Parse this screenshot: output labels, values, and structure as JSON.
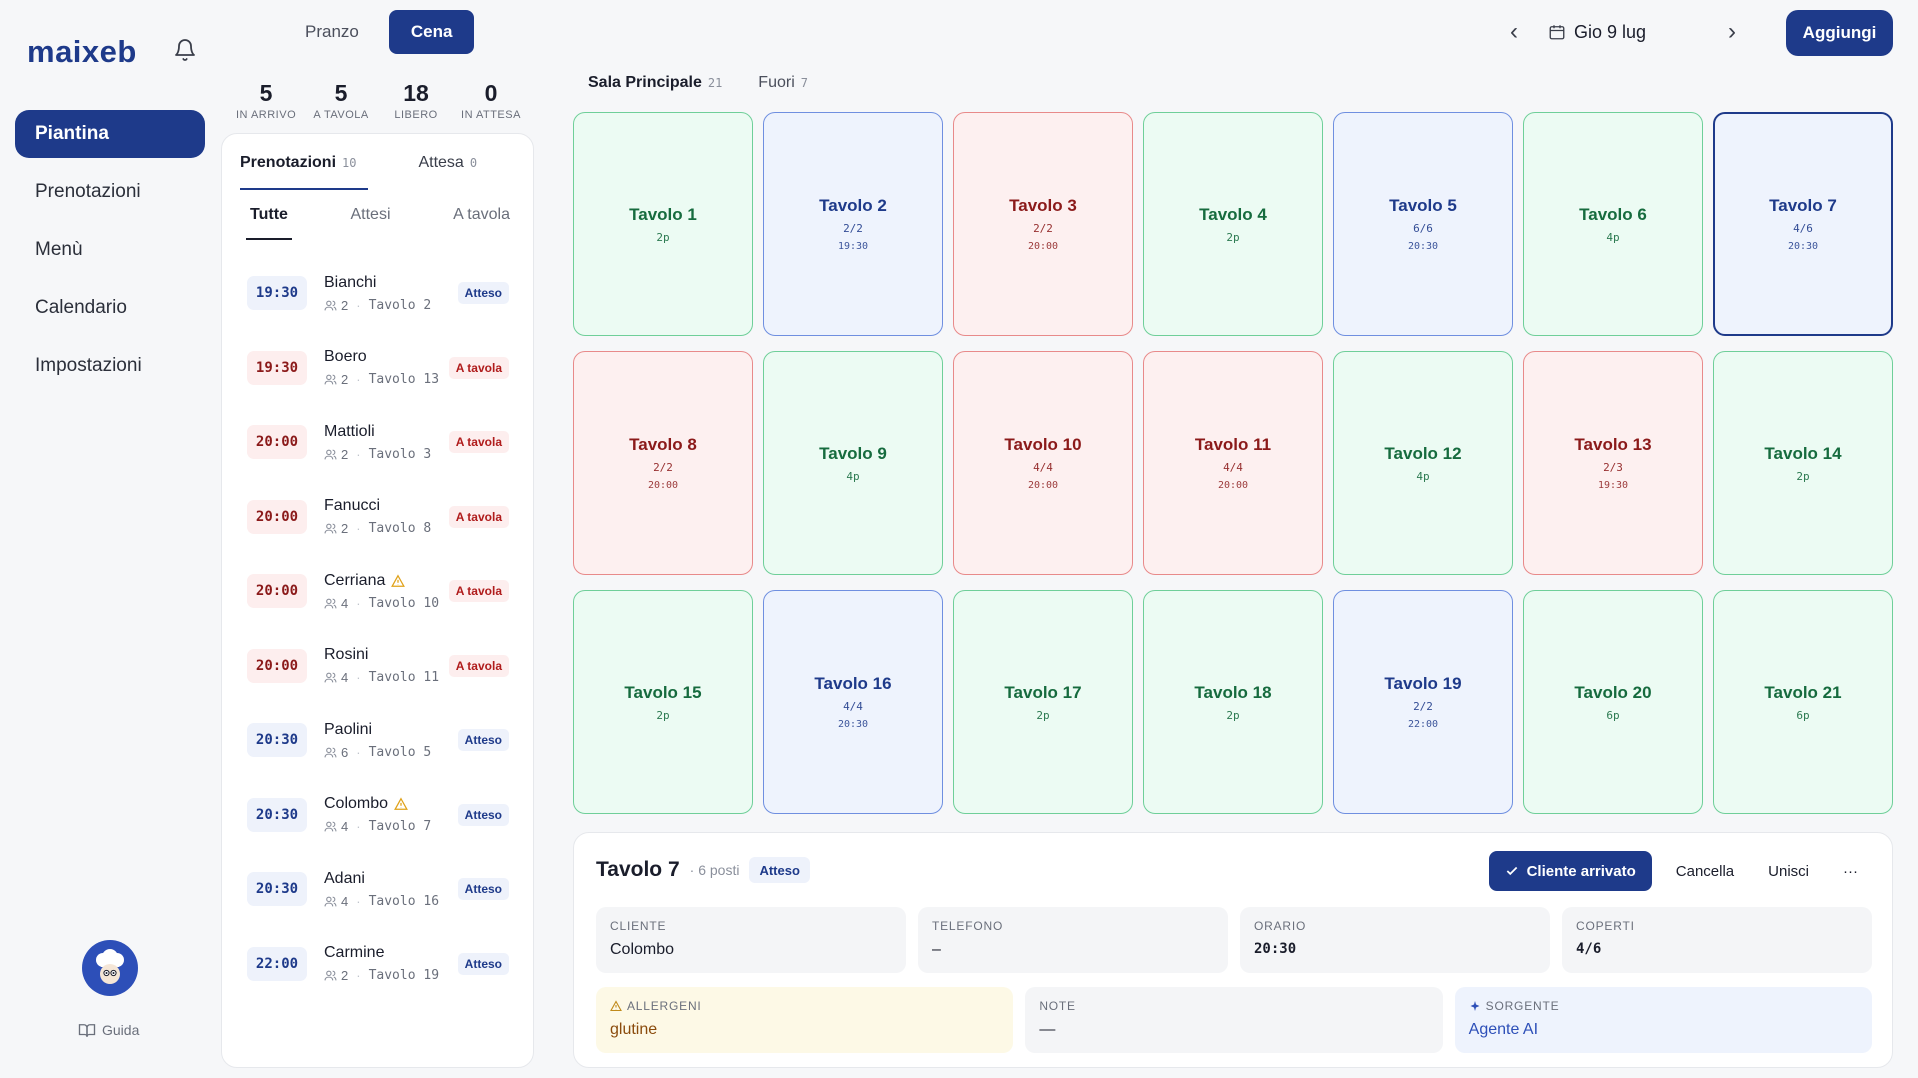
{
  "app": {
    "logo": "maixeb"
  },
  "sidebar": {
    "items": [
      {
        "label": "Piantina",
        "active": true
      },
      {
        "label": "Prenotazioni",
        "active": false
      },
      {
        "label": "Menù",
        "active": false
      },
      {
        "label": "Calendario",
        "active": false
      },
      {
        "label": "Impostazioni",
        "active": false
      }
    ],
    "guide_label": "Guida"
  },
  "meal": {
    "lunch": "Pranzo",
    "dinner": "Cena",
    "selected": "Cena"
  },
  "stats": [
    {
      "value": "5",
      "label": "IN ARRIVO"
    },
    {
      "value": "5",
      "label": "A TAVOLA"
    },
    {
      "value": "18",
      "label": "LIBERO"
    },
    {
      "value": "0",
      "label": "IN ATTESA"
    }
  ],
  "reservations": {
    "tabs": [
      {
        "label": "Prenotazioni",
        "count": "10"
      },
      {
        "label": "Attesa",
        "count": "0"
      }
    ],
    "filters": [
      "Tutte",
      "Attesi",
      "A tavola"
    ],
    "list": [
      {
        "time": "19:30",
        "name": "Bianchi",
        "guests": "2",
        "table": "Tavolo 2",
        "status": "Atteso",
        "state": "wait",
        "warning": false
      },
      {
        "time": "19:30",
        "name": "Boero",
        "guests": "2",
        "table": "Tavolo 13",
        "status": "A tavola",
        "state": "seat",
        "warning": false
      },
      {
        "time": "20:00",
        "name": "Mattioli",
        "guests": "2",
        "table": "Tavolo 3",
        "status": "A tavola",
        "state": "seat",
        "warning": false
      },
      {
        "time": "20:00",
        "name": "Fanucci",
        "guests": "2",
        "table": "Tavolo 8",
        "status": "A tavola",
        "state": "seat",
        "warning": false
      },
      {
        "time": "20:00",
        "name": "Cerriana",
        "guests": "4",
        "table": "Tavolo 10",
        "status": "A tavola",
        "state": "seat",
        "warning": true
      },
      {
        "time": "20:00",
        "name": "Rosini",
        "guests": "4",
        "table": "Tavolo 11",
        "status": "A tavola",
        "state": "seat",
        "warning": false
      },
      {
        "time": "20:30",
        "name": "Paolini",
        "guests": "6",
        "table": "Tavolo 5",
        "status": "Atteso",
        "state": "wait",
        "warning": false
      },
      {
        "time": "20:30",
        "name": "Colombo",
        "guests": "4",
        "table": "Tavolo 7",
        "status": "Atteso",
        "state": "wait",
        "warning": true
      },
      {
        "time": "20:30",
        "name": "Adani",
        "guests": "4",
        "table": "Tavolo 16",
        "status": "Atteso",
        "state": "wait",
        "warning": false
      },
      {
        "time": "22:00",
        "name": "Carmine",
        "guests": "2",
        "table": "Tavolo 19",
        "status": "Atteso",
        "state": "wait",
        "warning": false
      }
    ]
  },
  "header": {
    "date": "Gio 9 lug",
    "add_label": "Aggiungi"
  },
  "rooms": [
    {
      "label": "Sala Principale",
      "count": "21",
      "active": true
    },
    {
      "label": "Fuori",
      "count": "7",
      "active": false
    }
  ],
  "tables": [
    {
      "name": "Tavolo 1",
      "state": "free",
      "sub": "2p",
      "time": ""
    },
    {
      "name": "Tavolo 2",
      "state": "waiting",
      "sub": "2/2",
      "time": "19:30"
    },
    {
      "name": "Tavolo 3",
      "state": "seated",
      "sub": "2/2",
      "time": "20:00"
    },
    {
      "name": "Tavolo 4",
      "state": "free",
      "sub": "2p",
      "time": ""
    },
    {
      "name": "Tavolo 5",
      "state": "waiting",
      "sub": "6/6",
      "time": "20:30"
    },
    {
      "name": "Tavolo 6",
      "state": "free",
      "sub": "4p",
      "time": ""
    },
    {
      "name": "Tavolo 7",
      "state": "waiting",
      "sub": "4/6",
      "time": "20:30",
      "selected": true
    },
    {
      "name": "Tavolo 8",
      "state": "seated",
      "sub": "2/2",
      "time": "20:00"
    },
    {
      "name": "Tavolo 9",
      "state": "free",
      "sub": "4p",
      "time": ""
    },
    {
      "name": "Tavolo 10",
      "state": "seated",
      "sub": "4/4",
      "time": "20:00"
    },
    {
      "name": "Tavolo 11",
      "state": "seated",
      "sub": "4/4",
      "time": "20:00"
    },
    {
      "name": "Tavolo 12",
      "state": "free",
      "sub": "4p",
      "time": ""
    },
    {
      "name": "Tavolo 13",
      "state": "seated",
      "sub": "2/3",
      "time": "19:30"
    },
    {
      "name": "Tavolo 14",
      "state": "free",
      "sub": "2p",
      "time": ""
    },
    {
      "name": "Tavolo 15",
      "state": "free",
      "sub": "2p",
      "time": ""
    },
    {
      "name": "Tavolo 16",
      "state": "waiting",
      "sub": "4/4",
      "time": "20:30"
    },
    {
      "name": "Tavolo 17",
      "state": "free",
      "sub": "2p",
      "time": ""
    },
    {
      "name": "Tavolo 18",
      "state": "free",
      "sub": "2p",
      "time": ""
    },
    {
      "name": "Tavolo 19",
      "state": "waiting",
      "sub": "2/2",
      "time": "22:00"
    },
    {
      "name": "Tavolo 20",
      "state": "free",
      "sub": "6p",
      "time": ""
    },
    {
      "name": "Tavolo 21",
      "state": "free",
      "sub": "6p",
      "time": ""
    }
  ],
  "detail": {
    "title": "Tavolo 7",
    "seats": "· 6 posti",
    "status": "Atteso",
    "actions": {
      "arrived": "Cliente arrivato",
      "cancel": "Cancella",
      "merge": "Unisci",
      "more": "···"
    },
    "fields": [
      {
        "label": "CLIENTE",
        "value": "Colombo",
        "mono": false
      },
      {
        "label": "TELEFONO",
        "value": "–",
        "mono": false
      },
      {
        "label": "ORARIO",
        "value": "20:30",
        "mono": true
      },
      {
        "label": "COPERTI",
        "value": "4/6",
        "mono": true
      }
    ],
    "allergens": {
      "label": "ALLERGENI",
      "value": "glutine"
    },
    "notes": {
      "label": "NOTE",
      "value": "—"
    },
    "source": {
      "label": "SORGENTE",
      "value": "Agente AI"
    }
  },
  "colors": {
    "primary": "#1e3a8a",
    "free": "#ecfbf3",
    "waiting": "#eef3fd",
    "seated": "#fdf0f0"
  }
}
